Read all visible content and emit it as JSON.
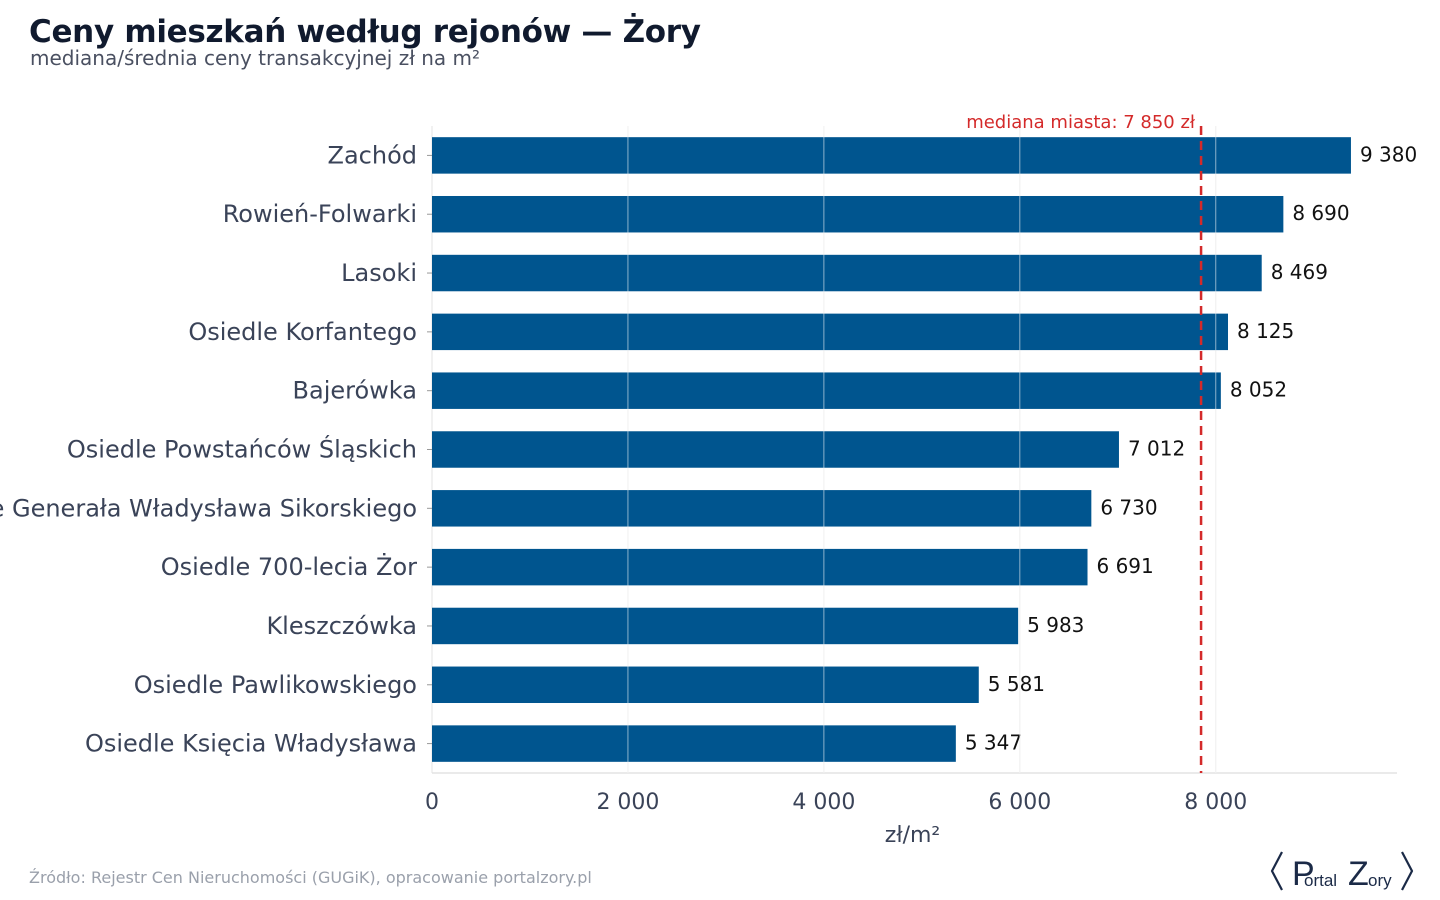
{
  "header": {
    "title": "Ceny mieszkań według rejonów — Żory",
    "subtitle": "mediana/średnia ceny transakcyjnej zł na m²"
  },
  "footer": {
    "source": "Źródło: Rejestr Cen Nieruchomości (GUGiK), opracowanie portalzory.pl",
    "logo_text_p": "P",
    "logo_text_ortal": "ortal",
    "logo_text_z": "Z",
    "logo_text_ory": "ory"
  },
  "colors": {
    "bar": "#00558f",
    "reference_line": "#d42a2a",
    "grid": "#e3e3e3",
    "label": "#3a4358",
    "value_label": "#111111"
  },
  "chart_data": {
    "type": "bar",
    "orientation": "horizontal",
    "title": "Ceny mieszkań według rejonów — Żory",
    "subtitle": "mediana/średnia ceny transakcyjnej zł na m²",
    "xlabel": "zł/m²",
    "ylabel": "",
    "xlim": [
      0,
      9850
    ],
    "xticks": [
      0,
      2000,
      4000,
      6000,
      8000
    ],
    "xtick_labels": [
      "0",
      "2 000",
      "4 000",
      "6 000",
      "8 000"
    ],
    "grid": true,
    "categories": [
      "Zachód",
      "Rowień-Folwarki",
      "Lasoki",
      "Osiedle Korfantego",
      "Bajerówka",
      "Osiedle Powstańców Śląskich",
      "Osiedle Generała Władysława Sikorskiego",
      "Osiedle 700-lecia Żor",
      "Kleszczówka",
      "Osiedle Pawlikowskiego",
      "Osiedle Księcia Władysława"
    ],
    "values": [
      9380,
      8690,
      8469,
      8125,
      8052,
      7012,
      6730,
      6691,
      5983,
      5581,
      5347
    ],
    "value_labels": [
      "9 380",
      "8 690",
      "8 469",
      "8 125",
      "8 052",
      "7 012",
      "6 730",
      "6 691",
      "5 983",
      "5 581",
      "5 347"
    ],
    "reference_line": {
      "value": 7850,
      "label": "mediana miasta: 7 850 zł"
    }
  }
}
